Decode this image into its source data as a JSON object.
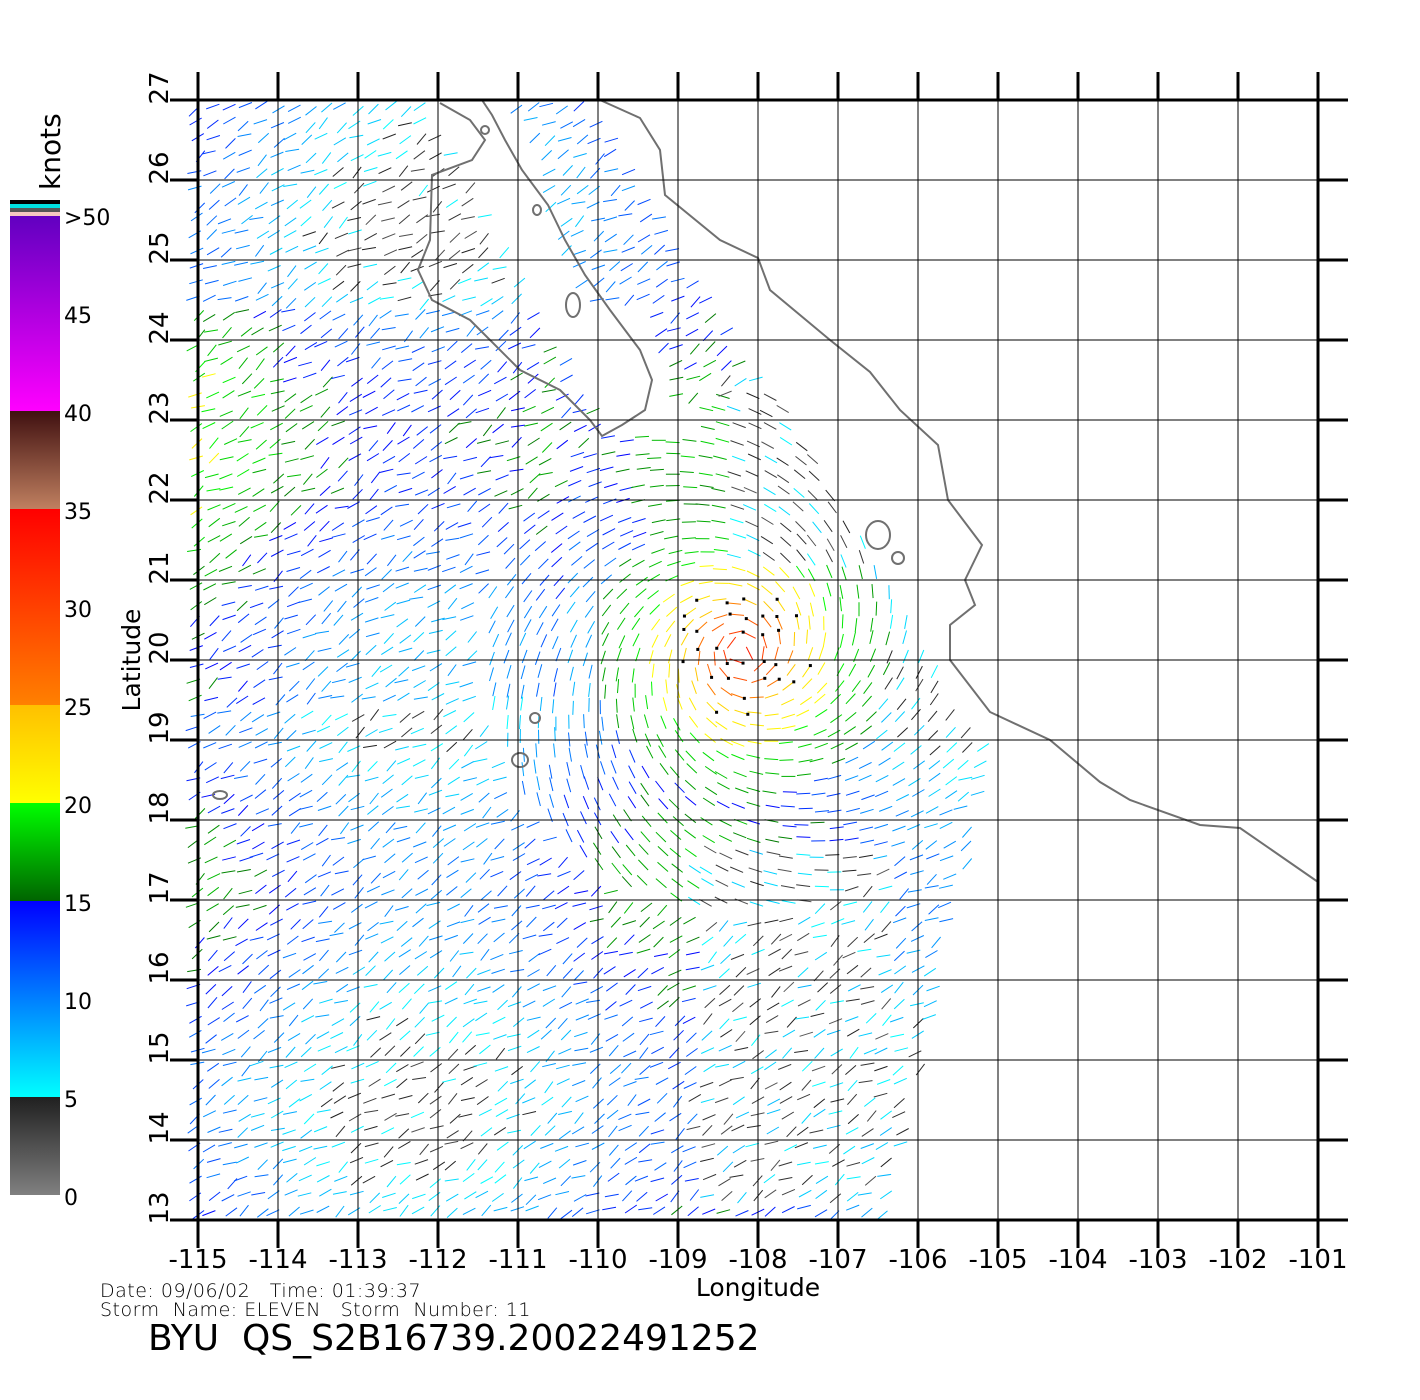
{
  "map": {
    "lon_range": [
      -115,
      -101
    ],
    "lat_range": [
      13,
      27
    ],
    "xlabel": "Longitude",
    "ylabel": "Latitude",
    "lon_ticks": [
      "-115",
      "-114",
      "-113",
      "-112",
      "-111",
      "-110",
      "-109",
      "-108",
      "-107",
      "-106",
      "-105",
      "-104",
      "-103",
      "-102",
      "-101"
    ],
    "lat_ticks": [
      "13",
      "14",
      "15",
      "16",
      "17",
      "18",
      "19",
      "20",
      "21",
      "22",
      "23",
      "24",
      "25",
      "26",
      "27"
    ],
    "grid": true,
    "coastline_color": "#707070",
    "storm_center": {
      "lon": -108.2,
      "lat": 20.1
    }
  },
  "colorbar": {
    "unit": "knots",
    "labels": [
      "0",
      "5",
      "10",
      "15",
      "20",
      "25",
      "30",
      "35",
      "40",
      "45",
      ">50"
    ],
    "segments": [
      {
        "from": 0,
        "to": 5,
        "colors": [
          "#808080",
          "#202020"
        ]
      },
      {
        "from": 5,
        "to": 15,
        "colors": [
          "#00ffff",
          "#0000ff"
        ]
      },
      {
        "from": 15,
        "to": 20,
        "colors": [
          "#006400",
          "#00ff00"
        ]
      },
      {
        "from": 20,
        "to": 25,
        "colors": [
          "#ffff00",
          "#ffc000"
        ]
      },
      {
        "from": 25,
        "to": 35,
        "colors": [
          "#ff8000",
          "#ff0000"
        ]
      },
      {
        "from": 35,
        "to": 40,
        "colors": [
          "#c08060",
          "#401010"
        ]
      },
      {
        "from": 40,
        "to": 50,
        "colors": [
          "#ff00ff",
          "#6000c0"
        ]
      }
    ]
  },
  "info": {
    "date_line": "Date: 09/06/02   Time: 01:39:37",
    "storm_line": "Storm  Name: ELEVEN   Storm  Number: 11",
    "file_id": "BYU  QS_S2B16739.20022491252"
  }
}
